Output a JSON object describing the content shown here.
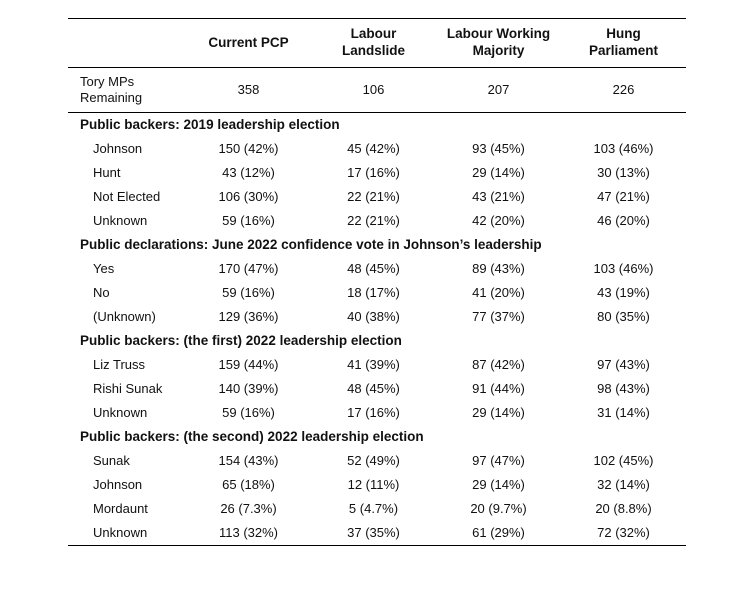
{
  "chart_data": {
    "type": "table",
    "columns": [
      "Current PCP",
      "Labour\nLandslide",
      "Labour Working\nMajority",
      "Hung\nParliament"
    ],
    "first_row": {
      "label": "Tory MPs\nRemaining",
      "values": [
        "358",
        "106",
        "207",
        "226"
      ]
    },
    "sections": [
      {
        "title": "Public backers: 2019 leadership election",
        "rows": [
          {
            "label": "Johnson",
            "values": [
              "150 (42%)",
              "45 (42%)",
              "93 (45%)",
              "103 (46%)"
            ]
          },
          {
            "label": "Hunt",
            "values": [
              "43 (12%)",
              "17 (16%)",
              "29 (14%)",
              "30 (13%)"
            ]
          },
          {
            "label": "Not Elected",
            "values": [
              "106 (30%)",
              "22 (21%)",
              "43 (21%)",
              "47 (21%)"
            ]
          },
          {
            "label": "Unknown",
            "values": [
              "59 (16%)",
              "22 (21%)",
              "42 (20%)",
              "46 (20%)"
            ]
          }
        ]
      },
      {
        "title": "Public declarations: June 2022 confidence vote in Johnson’s leadership",
        "rows": [
          {
            "label": "Yes",
            "values": [
              "170 (47%)",
              "48 (45%)",
              "89 (43%)",
              "103 (46%)"
            ]
          },
          {
            "label": "No",
            "values": [
              "59 (16%)",
              "18 (17%)",
              "41 (20%)",
              "43 (19%)"
            ]
          },
          {
            "label": "(Unknown)",
            "values": [
              "129 (36%)",
              "40 (38%)",
              "77 (37%)",
              "80 (35%)"
            ]
          }
        ]
      },
      {
        "title": "Public backers: (the first) 2022 leadership election",
        "rows": [
          {
            "label": "Liz Truss",
            "values": [
              "159 (44%)",
              "41 (39%)",
              "87 (42%)",
              "97 (43%)"
            ]
          },
          {
            "label": "Rishi Sunak",
            "values": [
              "140 (39%)",
              "48 (45%)",
              "91 (44%)",
              "98 (43%)"
            ]
          },
          {
            "label": "Unknown",
            "values": [
              "59 (16%)",
              "17 (16%)",
              "29 (14%)",
              "31 (14%)"
            ]
          }
        ]
      },
      {
        "title": "Public backers: (the second) 2022 leadership election",
        "rows": [
          {
            "label": "Sunak",
            "values": [
              "154 (43%)",
              "52 (49%)",
              "97 (47%)",
              "102 (45%)"
            ]
          },
          {
            "label": "Johnson",
            "values": [
              "65 (18%)",
              "12 (11%)",
              "29 (14%)",
              "32 (14%)"
            ]
          },
          {
            "label": "Mordaunt",
            "values": [
              "26 (7.3%)",
              "5 (4.7%)",
              "20 (9.7%)",
              "20 (8.8%)"
            ]
          },
          {
            "label": "Unknown",
            "values": [
              "113 (32%)",
              "37 (35%)",
              "61 (29%)",
              "72 (32%)"
            ]
          }
        ]
      }
    ]
  }
}
